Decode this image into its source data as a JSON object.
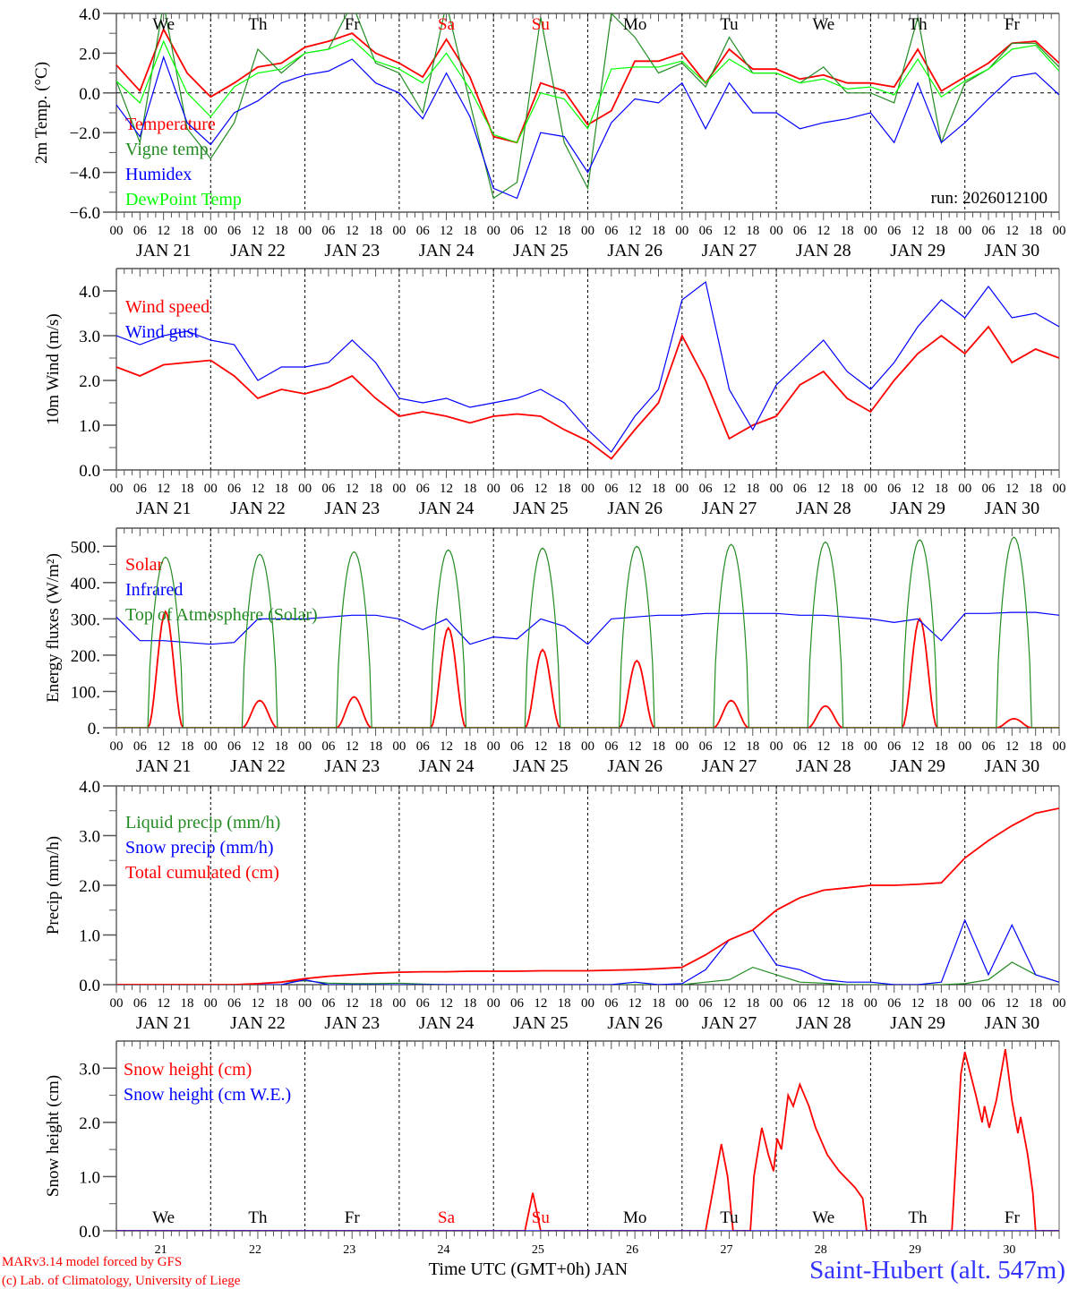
{
  "x_axis": {
    "hour_labels": [
      "00",
      "06",
      "12",
      "18"
    ],
    "date_labels": [
      "JAN 21",
      "JAN 22",
      "JAN 23",
      "JAN 24",
      "JAN 25",
      "JAN 26",
      "JAN 27",
      "JAN 28",
      "JAN 29",
      "JAN 30"
    ],
    "last_hour_label": "00",
    "weekdays": [
      "We",
      "Th",
      "Fr",
      "Sa",
      "Su",
      "Mo",
      "Tu",
      "We",
      "Th",
      "Fr"
    ],
    "weekend_days": [
      3,
      4
    ],
    "weekend_color": "#ff0000",
    "day_numbers": [
      "21",
      "22",
      "23",
      "24",
      "25",
      "26",
      "27",
      "28",
      "29",
      "30"
    ]
  },
  "footer": {
    "model": "MARv3.14 model forced by GFS",
    "credit": "(c) Lab. of Climatology, University of Liege",
    "xlabel": "Time UTC (GMT+0h) JAN",
    "station": "Saint-Hubert (alt. 547m)"
  },
  "chart_data": [
    {
      "type": "line",
      "ylabel": "2m Temp. (°C)",
      "ylim": [
        -6,
        4
      ],
      "yticks": [
        -6,
        -4,
        -2,
        0,
        2,
        4
      ],
      "ytick_labels": [
        "−6.0",
        "−4.0",
        "−2.0",
        "0.0",
        "2.0",
        "4.0"
      ],
      "zero_line": true,
      "annotation": "run: 2026012100",
      "step_hours": 6,
      "series": [
        {
          "name": "Temperature",
          "color": "#ff0000",
          "values": [
            1.4,
            0.1,
            3.2,
            1.0,
            -0.2,
            0.5,
            1.3,
            1.5,
            2.3,
            2.6,
            3.0,
            2.0,
            1.5,
            0.8,
            2.7,
            0.8,
            -2.2,
            -2.5,
            0.5,
            0.1,
            -1.6,
            -0.9,
            1.6,
            1.6,
            2.0,
            0.5,
            2.2,
            1.2,
            1.2,
            0.7,
            0.9,
            0.5,
            0.5,
            0.3,
            2.2,
            0.1,
            0.8,
            1.5,
            2.5,
            2.6,
            1.5
          ]
        },
        {
          "name": "Vigne temp",
          "color": "#228b22",
          "values": [
            0.6,
            -2.5,
            4.5,
            -1.8,
            -3.3,
            -1.5,
            2.2,
            1.0,
            2.0,
            2.2,
            4.5,
            1.5,
            1.0,
            -1.0,
            4.5,
            -0.5,
            -5.3,
            -4.5,
            3.8,
            -2.5,
            -4.8,
            4.0,
            2.8,
            1.0,
            1.5,
            0.3,
            2.8,
            1.0,
            1.0,
            0.5,
            1.3,
            0.0,
            0.0,
            -0.5,
            3.8,
            -2.5,
            0.5,
            1.2,
            2.5,
            2.5,
            1.3
          ]
        },
        {
          "name": "Humidex",
          "color": "#0000ff",
          "values": [
            -0.6,
            -2.2,
            1.8,
            -1.5,
            -2.6,
            -1.0,
            -0.4,
            0.5,
            0.9,
            1.1,
            1.7,
            0.5,
            0.0,
            -1.3,
            1.0,
            -1.2,
            -4.8,
            -5.3,
            -2.0,
            -2.2,
            -4.0,
            -1.5,
            -0.3,
            -0.5,
            0.5,
            -1.8,
            0.5,
            -1.0,
            -1.0,
            -1.8,
            -1.5,
            -1.3,
            -1.0,
            -2.5,
            0.5,
            -2.5,
            -1.5,
            -0.3,
            0.8,
            1.0,
            -0.1
          ]
        },
        {
          "name": "DewPoint Temp",
          "color": "#00ff00",
          "values": [
            0.6,
            -0.5,
            2.6,
            0.0,
            -1.2,
            0.3,
            1.0,
            1.2,
            2.0,
            2.2,
            2.7,
            1.6,
            1.2,
            0.5,
            2.0,
            0.2,
            -2.1,
            -2.5,
            0.0,
            -0.3,
            -1.8,
            1.2,
            1.3,
            1.3,
            1.6,
            0.5,
            1.7,
            1.0,
            1.0,
            0.5,
            0.7,
            0.2,
            0.3,
            -0.1,
            1.7,
            -0.2,
            0.6,
            1.2,
            2.2,
            2.4,
            1.1
          ]
        }
      ]
    },
    {
      "type": "line",
      "ylabel": "10m Wind (m/s)",
      "ylim": [
        0,
        4.5
      ],
      "yticks": [
        0,
        1,
        2,
        3,
        4
      ],
      "ytick_labels": [
        "0.0",
        "1.0",
        "2.0",
        "3.0",
        "4.0"
      ],
      "step_hours": 6,
      "series": [
        {
          "name": "Wind speed",
          "color": "#ff0000",
          "values": [
            2.3,
            2.1,
            2.35,
            2.4,
            2.45,
            2.1,
            1.6,
            1.8,
            1.7,
            1.85,
            2.1,
            1.6,
            1.2,
            1.3,
            1.2,
            1.05,
            1.2,
            1.25,
            1.2,
            0.9,
            0.65,
            0.25,
            0.9,
            1.5,
            3.0,
            2.0,
            0.7,
            1.0,
            1.2,
            1.9,
            2.2,
            1.6,
            1.3,
            2.0,
            2.6,
            3.0,
            2.6,
            3.2,
            2.4,
            2.7,
            2.5
          ]
        },
        {
          "name": "Wind gust",
          "color": "#0000ff",
          "values": [
            3.0,
            2.8,
            3.0,
            3.1,
            2.9,
            2.8,
            2.0,
            2.3,
            2.3,
            2.4,
            2.9,
            2.4,
            1.6,
            1.5,
            1.6,
            1.4,
            1.5,
            1.6,
            1.8,
            1.5,
            0.9,
            0.4,
            1.2,
            1.8,
            3.8,
            4.2,
            1.8,
            0.9,
            1.9,
            2.4,
            2.9,
            2.2,
            1.8,
            2.4,
            3.2,
            3.8,
            3.4,
            4.1,
            3.4,
            3.5,
            3.2
          ]
        }
      ]
    },
    {
      "type": "line",
      "ylabel": "Energy fluxes (W/m²)",
      "ylim": [
        0,
        550
      ],
      "yticks": [
        0,
        100,
        200,
        300,
        400,
        500
      ],
      "ytick_labels": [
        "0.",
        "100.",
        "200.",
        "300.",
        "400.",
        "500."
      ],
      "series": [
        {
          "name": "Solar",
          "color": "#ff0000",
          "daily_peaks": [
            320,
            75,
            85,
            275,
            215,
            185,
            75,
            60,
            300,
            25
          ],
          "daylight_hours": [
            8,
            17
          ]
        },
        {
          "name": "Infrared",
          "color": "#0000ff",
          "step_hours": 6,
          "values": [
            305,
            240,
            240,
            235,
            230,
            235,
            300,
            300,
            300,
            305,
            310,
            310,
            300,
            270,
            300,
            230,
            250,
            245,
            300,
            280,
            230,
            300,
            305,
            310,
            310,
            315,
            315,
            315,
            315,
            310,
            310,
            305,
            300,
            290,
            300,
            240,
            315,
            315,
            318,
            318,
            310
          ]
        },
        {
          "name": "Top of Atmosphere (Solar)",
          "color": "#228b22",
          "daily_peaks": [
            470,
            478,
            485,
            490,
            495,
            500,
            505,
            512,
            518,
            525
          ],
          "daylight_hours": [
            8,
            17
          ]
        }
      ]
    },
    {
      "type": "line",
      "ylabel": "Precip (mm/h)",
      "ylim": [
        0,
        4
      ],
      "yticks": [
        0,
        1,
        2,
        3,
        4
      ],
      "ytick_labels": [
        "0.0",
        "1.0",
        "2.0",
        "3.0",
        "4.0"
      ],
      "step_hours": 6,
      "series": [
        {
          "name": "Liquid precip (mm/h)",
          "color": "#228b22",
          "values": [
            0,
            0,
            0,
            0,
            0,
            0,
            0.02,
            0.05,
            0.08,
            0.03,
            0.02,
            0.02,
            0.03,
            0.01,
            0,
            0,
            0,
            0,
            0,
            0,
            0,
            0,
            0,
            0,
            0,
            0.05,
            0.1,
            0.35,
            0.2,
            0.05,
            0.03,
            0,
            0,
            0,
            0,
            0,
            0.02,
            0.1,
            0.45,
            0.2,
            0.05
          ]
        },
        {
          "name": "Snow precip (mm/h)",
          "color": "#0000ff",
          "values": [
            0,
            0,
            0,
            0,
            0,
            0,
            0,
            0,
            0.1,
            0,
            0,
            0,
            0,
            0,
            0,
            0,
            0,
            0,
            0,
            0,
            0,
            0,
            0.05,
            0,
            0.02,
            0.3,
            0.9,
            1.1,
            0.4,
            0.3,
            0.1,
            0.05,
            0.05,
            0,
            0,
            0.05,
            1.3,
            0.2,
            1.2,
            0.2,
            0.05
          ]
        },
        {
          "name": "Total cumulated (cm)",
          "color": "#ff0000",
          "values": [
            0,
            0,
            0,
            0,
            0,
            0,
            0.02,
            0.05,
            0.12,
            0.17,
            0.2,
            0.23,
            0.25,
            0.26,
            0.26,
            0.27,
            0.27,
            0.27,
            0.28,
            0.28,
            0.28,
            0.29,
            0.3,
            0.32,
            0.35,
            0.6,
            0.9,
            1.1,
            1.5,
            1.75,
            1.9,
            1.95,
            2.0,
            2.0,
            2.02,
            2.05,
            2.55,
            2.9,
            3.2,
            3.45,
            3.55
          ]
        }
      ]
    },
    {
      "type": "line",
      "ylabel": "Snow height (cm)",
      "ylim": [
        0,
        3.5
      ],
      "yticks": [
        0,
        1,
        2,
        3
      ],
      "ytick_labels": [
        "0.0",
        "1.0",
        "2.0",
        "3.0"
      ],
      "series": [
        {
          "name": "Snow height (cm)",
          "color": "#ff0000",
          "points": [
            [
              0,
              0
            ],
            [
              104,
              0
            ],
            [
              106,
              0.7
            ],
            [
              108,
              0
            ],
            [
              150,
              0
            ],
            [
              154,
              1.6
            ],
            [
              155.6,
              1.0
            ],
            [
              157,
              0
            ],
            [
              161.4,
              0
            ],
            [
              162.3,
              1.0
            ],
            [
              164.3,
              1.9
            ],
            [
              166,
              1.4
            ],
            [
              167.3,
              1.1
            ],
            [
              168.2,
              1.7
            ],
            [
              169.3,
              1.5
            ],
            [
              171,
              2.5
            ],
            [
              172.3,
              2.3
            ],
            [
              174,
              2.7
            ],
            [
              176.3,
              2.3
            ],
            [
              178,
              1.9
            ],
            [
              181,
              1.4
            ],
            [
              184,
              1.1
            ],
            [
              188,
              0.8
            ],
            [
              190,
              0.6
            ],
            [
              191,
              0
            ],
            [
              212.7,
              0
            ],
            [
              213.5,
              1.0
            ],
            [
              215,
              2.9
            ],
            [
              216,
              3.3
            ],
            [
              218.8,
              2.5
            ],
            [
              220.4,
              2.0
            ],
            [
              221,
              2.3
            ],
            [
              222.2,
              1.9
            ],
            [
              224,
              2.4
            ],
            [
              226.3,
              3.35
            ],
            [
              228,
              2.4
            ],
            [
              229.5,
              1.8
            ],
            [
              230.2,
              2.1
            ],
            [
              232,
              1.4
            ],
            [
              233.3,
              0.7
            ],
            [
              234,
              0
            ],
            [
              240,
              0
            ]
          ]
        },
        {
          "name": "Snow height (cm W.E.)",
          "color": "#0000ff",
          "points": [
            [
              0,
              0
            ],
            [
              240,
              0
            ]
          ]
        }
      ]
    }
  ]
}
